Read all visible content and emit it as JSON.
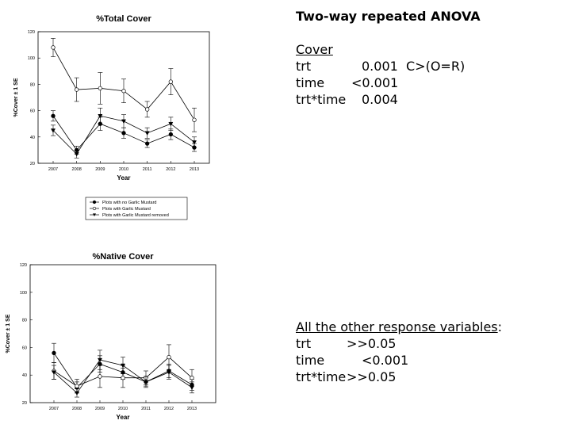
{
  "chart_data": [
    {
      "type": "line",
      "title": "%Total Cover",
      "xlabel": "Year",
      "ylabel": "%Cover ± 1 SE",
      "categories": [
        "2007",
        "2008",
        "2009",
        "2010",
        "2011",
        "2012",
        "2013"
      ],
      "ylim": [
        20,
        120
      ],
      "yticks": [
        "20",
        "40",
        "60",
        "80",
        "100",
        "120"
      ],
      "series": [
        {
          "name": "Plots with no Garlic Mustard",
          "marker": "filled-circle",
          "values": [
            56,
            30,
            50,
            43,
            35,
            42,
            32
          ],
          "se": [
            4,
            3,
            5,
            4,
            3,
            4,
            3
          ]
        },
        {
          "name": "Plots with Garlic Mustard",
          "marker": "open-circle",
          "values": [
            108,
            76,
            77,
            75,
            61,
            82,
            53
          ],
          "se": [
            7,
            9,
            12,
            9,
            6,
            10,
            9
          ]
        },
        {
          "name": "Plots with Garlic Mustard removed",
          "marker": "filled-triangle",
          "values": [
            45,
            27,
            56,
            52,
            43,
            50,
            36
          ],
          "se": [
            4,
            3,
            6,
            5,
            4,
            5,
            4
          ]
        }
      ],
      "legend_position": "bottom"
    },
    {
      "type": "line",
      "title": "%Native Cover",
      "xlabel": "Year",
      "ylabel": "%Cover ± 1 SE",
      "categories": [
        "2007",
        "2008",
        "2009",
        "2010",
        "2011",
        "2012",
        "2013"
      ],
      "ylim": [
        20,
        120
      ],
      "yticks": [
        "20",
        "40",
        "60",
        "80",
        "100",
        "120"
      ],
      "series": [
        {
          "name": "Plots with no Garlic Mustard",
          "marker": "filled-circle",
          "values": [
            56,
            31,
            48,
            42,
            35,
            43,
            33
          ],
          "se": [
            7,
            4,
            6,
            5,
            3,
            5,
            4
          ]
        },
        {
          "name": "Plots with Garlic Mustard",
          "marker": "open-circle",
          "values": [
            43,
            32,
            39,
            38,
            38,
            53,
            38
          ],
          "se": [
            6,
            5,
            8,
            7,
            5,
            9,
            6
          ]
        },
        {
          "name": "Plots with Garlic Mustard removed",
          "marker": "filled-triangle",
          "values": [
            42,
            27,
            51,
            47,
            35,
            42,
            31
          ],
          "se": [
            5,
            3,
            7,
            6,
            4,
            5,
            4
          ]
        }
      ]
    }
  ],
  "stats": {
    "heading": "Two-way repeated ANOVA",
    "top": {
      "title": "Cover",
      "rows": [
        {
          "term": "trt",
          "p": "0.001",
          "note": "C>(O=R)"
        },
        {
          "term": "time",
          "p": "<0.001",
          "note": ""
        },
        {
          "term": "trt*time",
          "p": "0.004",
          "note": ""
        }
      ]
    },
    "bottom": {
      "title": "All the other response variables",
      "title_suffix": ":",
      "rows": [
        {
          "term": "trt",
          "p": ">>0.05"
        },
        {
          "term": "time",
          "p": "<0.001"
        },
        {
          "term": "trt*time",
          "p": ">>0.05"
        }
      ]
    }
  }
}
